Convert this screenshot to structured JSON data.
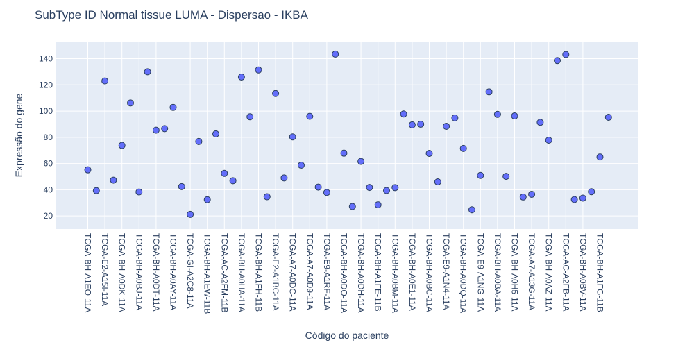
{
  "chart_data": {
    "type": "scatter",
    "title": "SubType ID Normal tissue LUMA - Dispersao - IKBA",
    "xlabel": "Código do paciente",
    "ylabel": "Expressão do gene",
    "ylim": [
      10,
      153
    ],
    "yticks": [
      20,
      40,
      60,
      80,
      100,
      120,
      140
    ],
    "grid": true,
    "legend": "none",
    "marker_color": "#636efa",
    "marker_line_color": "#2a3f5f",
    "plot_bg": "#e5ecf6",
    "x_tick_labels": [
      "TCGA-BH-A1EO-11A",
      "TCGA-E2-A15I-11A",
      "TCGA-BH-A0DK-11A",
      "TCGA-BH-A0BJ-11A",
      "TCGA-BH-A0DT-11A",
      "TCGA-BH-A0AY-11A",
      "TCGA-GI-A2C8-11A",
      "TCGA-BH-A1EW-11B",
      "TCGA-AC-A2FM-11B",
      "TCGA-BH-A0HA-11A",
      "TCGA-BH-A1FH-11B",
      "TCGA-E2-A1BC-11A",
      "TCGA-A7-A0DC-11A",
      "TCGA-A7-A0D9-11A",
      "TCGA-E9-A1RF-11A",
      "TCGA-BH-A0DO-11A",
      "TCGA-BH-A0DH-11A",
      "TCGA-BH-A1FE-11B",
      "TCGA-BH-A0BM-11A",
      "TCGA-BH-A0E1-11A",
      "TCGA-BH-A0BC-11A",
      "TCGA-E9-A1N4-11A",
      "TCGA-BH-A0DQ-11A",
      "TCGA-E9-A1NG-11A",
      "TCGA-BH-A0BA-11A",
      "TCGA-BH-A0H5-11A",
      "TCGA-A7-A13G-11A",
      "TCGA-BH-A0AZ-11A",
      "TCGA-AC-A2FB-11A",
      "TCGA-BH-A0BV-11A",
      "TCGA-BH-A1FG-11B"
    ],
    "y": [
      55.2,
      39.3,
      123.0,
      47.3,
      73.8,
      106.2,
      38.3,
      130.0,
      85.4,
      86.6,
      102.8,
      42.4,
      21.2,
      76.8,
      32.4,
      82.6,
      52.5,
      46.9,
      126.0,
      95.7,
      131.4,
      34.6,
      113.4,
      49.0,
      80.3,
      58.7,
      96.0,
      42.0,
      37.9,
      143.5,
      67.9,
      27.2,
      61.6,
      41.7,
      28.5,
      39.4,
      41.6,
      97.8,
      89.5,
      90.0,
      67.7,
      46.0,
      88.4,
      94.8,
      71.5,
      24.7,
      50.9,
      114.7,
      97.5,
      50.2,
      96.3,
      34.4,
      36.5,
      91.4,
      77.8,
      138.6,
      143.2,
      32.5,
      33.6,
      38.5,
      65.0,
      95.3
    ]
  }
}
